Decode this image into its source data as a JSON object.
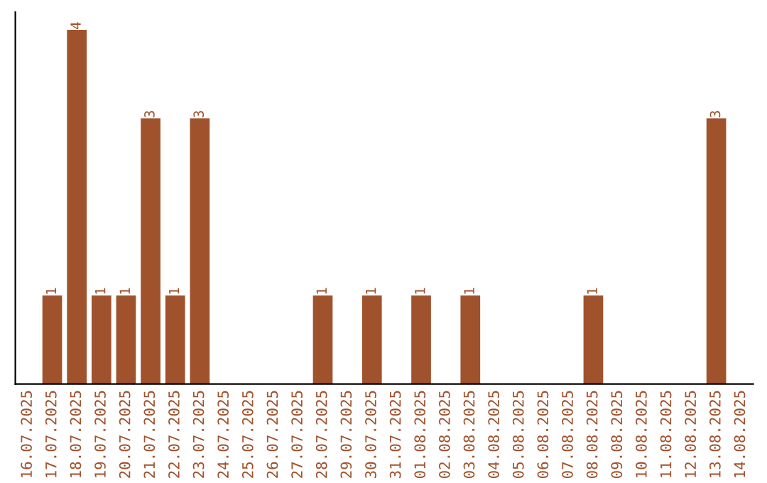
{
  "chart_data": {
    "type": "bar",
    "categories": [
      "16.07.2025",
      "17.07.2025",
      "18.07.2025",
      "19.07.2025",
      "20.07.2025",
      "21.07.2025",
      "22.07.2025",
      "23.07.2025",
      "24.07.2025",
      "25.07.2025",
      "26.07.2025",
      "27.07.2025",
      "28.07.2025",
      "29.07.2025",
      "30.07.2025",
      "31.07.2025",
      "01.08.2025",
      "02.08.2025",
      "03.08.2025",
      "04.08.2025",
      "05.08.2025",
      "06.08.2025",
      "07.08.2025",
      "08.08.2025",
      "09.08.2025",
      "10.08.2025",
      "11.08.2025",
      "12.08.2025",
      "13.08.2025",
      "14.08.2025"
    ],
    "values": [
      0,
      1,
      4,
      1,
      1,
      3,
      1,
      3,
      0,
      0,
      0,
      0,
      1,
      0,
      1,
      0,
      1,
      0,
      1,
      0,
      0,
      0,
      0,
      1,
      0,
      0,
      0,
      0,
      3,
      0
    ],
    "value_labels": [
      null,
      "1",
      "4",
      "1",
      "1",
      "3",
      "1",
      "3",
      null,
      null,
      null,
      null,
      "1",
      null,
      "1",
      null,
      "1",
      null,
      "1",
      null,
      null,
      null,
      null,
      "1",
      null,
      null,
      null,
      null,
      "3",
      null
    ],
    "color": "#a0522d",
    "ylim": [
      0,
      4.2
    ],
    "tick_labels": "x",
    "grid": false,
    "legend": false
  }
}
